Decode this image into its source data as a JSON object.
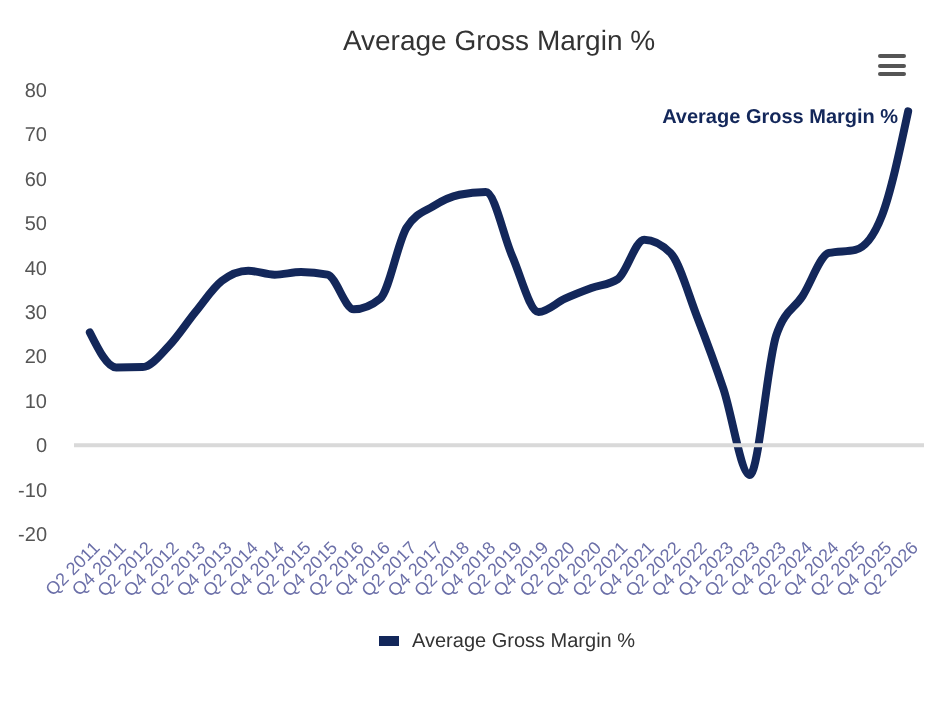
{
  "chart_data": {
    "type": "line",
    "title": "Average Gross Margin %",
    "categories": [
      "Q2 2011",
      "Q4 2011",
      "Q2 2012",
      "Q4 2012",
      "Q2 2013",
      "Q4 2013",
      "Q2 2014",
      "Q4 2014",
      "Q2 2015",
      "Q4 2015",
      "Q2 2016",
      "Q4 2016",
      "Q2 2017",
      "Q4 2017",
      "Q2 2018",
      "Q4 2018",
      "Q2 2019",
      "Q4 2019",
      "Q2 2020",
      "Q4 2020",
      "Q2 2021",
      "Q4 2021",
      "Q2 2022",
      "Q4 2022",
      "Q1 2023",
      "Q2 2023",
      "Q4 2023",
      "Q2 2024",
      "Q4 2024",
      "Q2 2025",
      "Q4 2025",
      "Q2 2026"
    ],
    "series": [
      {
        "name": "Average Gross Margin %",
        "color": "#13275a",
        "values": [
          25.4,
          17.5,
          17.6,
          22.4,
          30,
          37,
          39.3,
          38.4,
          39,
          38.4,
          30.6,
          33,
          49,
          53.8,
          56.4,
          57,
          42.6,
          30,
          33,
          35.4,
          37.4,
          46.3,
          43.3,
          29,
          12.7,
          -6.7,
          24.7,
          33.6,
          43.3,
          44,
          51.6,
          75.2
        ]
      }
    ],
    "annotations": [
      {
        "text": "Average Gross Margin %",
        "x": "Q2 2026",
        "y": 75.2
      }
    ],
    "ylim": [
      -20,
      80
    ],
    "yticks": [
      -20,
      -10,
      0,
      10,
      20,
      30,
      40,
      50,
      60,
      70,
      80
    ],
    "ref_lines": [
      {
        "axis": "y",
        "value": 0,
        "color": "#d9d9d9"
      }
    ],
    "grid": false,
    "legend": "bottom",
    "line_style": "solid"
  }
}
